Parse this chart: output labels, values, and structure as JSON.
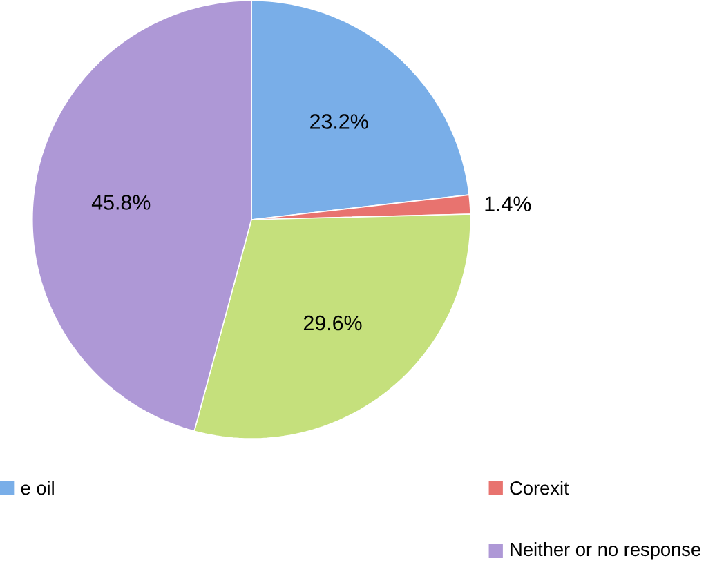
{
  "chart_data": {
    "type": "pie",
    "categories": [
      "e oil",
      "Corexit",
      null,
      "Neither or no response"
    ],
    "values": [
      23.2,
      1.4,
      29.6,
      45.8
    ],
    "value_labels": [
      "23.2%",
      "1.4%",
      "29.6%",
      "45.8%"
    ],
    "colors": [
      "#79aee8",
      "#e8736f",
      "#c5e07c",
      "#ae98d6"
    ],
    "legend": "bottom"
  }
}
